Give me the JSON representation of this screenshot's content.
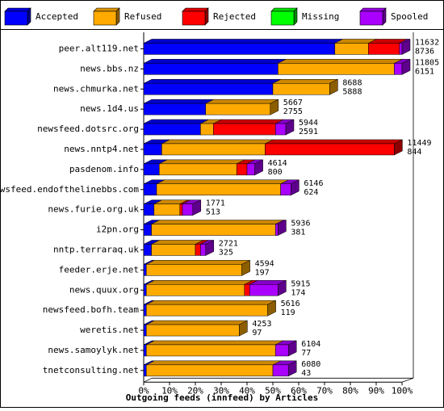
{
  "chart_data": {
    "type": "bar",
    "stacked": true,
    "orientation": "horizontal",
    "title": "",
    "xlabel": "Outgoing feeds (innfeed) by Articles",
    "ylabel": "",
    "xlim": [
      0,
      100
    ],
    "x_ticks": [
      "0%",
      "10%",
      "20%",
      "30%",
      "40%",
      "50%",
      "60%",
      "70%",
      "80%",
      "90%",
      "100%"
    ],
    "legend_position": "top",
    "legend": [
      {
        "name": "Accepted",
        "color": "#0000ff"
      },
      {
        "name": "Refused",
        "color": "#ffaa00"
      },
      {
        "name": "Rejected",
        "color": "#ff0000"
      },
      {
        "name": "Missing",
        "color": "#00ff00"
      },
      {
        "name": "Spooled",
        "color": "#aa00ff"
      }
    ],
    "categories": [
      "peer.alt119.net",
      "news.bbs.nz",
      "news.chmurka.net",
      "news.1d4.us",
      "newsfeed.dotsrc.org",
      "news.nntp4.net",
      "pasdenom.info",
      "newsfeed.endofthelinebbs.com",
      "news.furie.org.uk",
      "i2pn.org",
      "nntp.terraraq.uk",
      "feeder.erje.net",
      "news.quux.org",
      "newsfeed.bofh.team",
      "weretis.net",
      "news.samoylyk.net",
      "tnetconsulting.net"
    ],
    "offered": [
      11632,
      11805,
      8688,
      5667,
      5944,
      11449,
      4614,
      6146,
      1771,
      5936,
      2721,
      4594,
      5915,
      5616,
      4253,
      6104,
      6080
    ],
    "accepted": [
      8736,
      6151,
      5888,
      2755,
      2591,
      844,
      800,
      624,
      513,
      381,
      325,
      197,
      174,
      119,
      97,
      77,
      43
    ],
    "series": [
      {
        "name": "Accepted",
        "values": [
          74,
          52,
          50,
          24,
          22,
          7,
          6,
          5,
          4,
          3,
          3,
          1,
          1,
          1,
          1,
          1,
          1
        ]
      },
      {
        "name": "Refused",
        "values": [
          13,
          45,
          22,
          25,
          5,
          40,
          30,
          48,
          10,
          48,
          17,
          37,
          38,
          47,
          36,
          50,
          49
        ]
      },
      {
        "name": "Rejected",
        "values": [
          12,
          0,
          0,
          0,
          24,
          50,
          4,
          0,
          1,
          0,
          2,
          0,
          2,
          0,
          0,
          0,
          0
        ]
      },
      {
        "name": "Missing",
        "values": [
          0,
          0,
          0,
          0,
          0,
          0,
          0,
          0,
          0,
          0,
          0,
          0,
          0,
          0,
          0,
          0,
          0
        ]
      },
      {
        "name": "Spooled",
        "values": [
          1,
          3,
          0,
          0,
          4,
          0,
          3,
          4,
          4,
          1,
          2,
          0,
          11,
          0,
          0,
          5,
          6
        ]
      }
    ]
  }
}
